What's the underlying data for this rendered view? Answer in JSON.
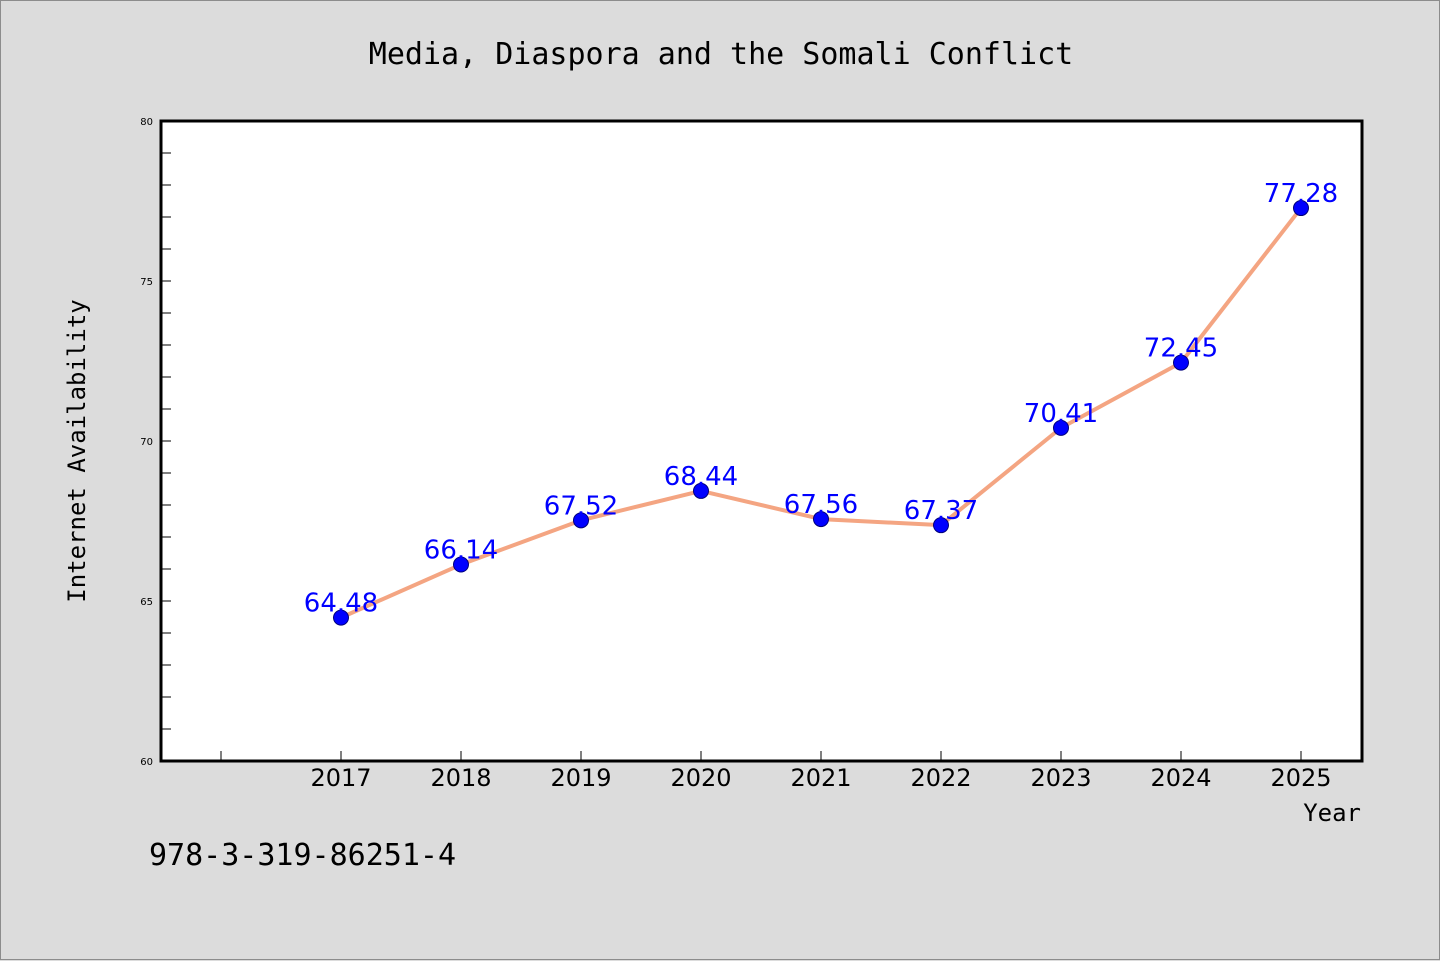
{
  "chart_data": {
    "type": "line",
    "title": "Media, Diaspora and the Somali Conflict",
    "xlabel": "Year",
    "ylabel": "Internet Availability",
    "categories": [
      "2017",
      "2018",
      "2019",
      "2020",
      "2021",
      "2022",
      "2023",
      "2024",
      "2025"
    ],
    "series": [
      {
        "values": [
          64.48,
          66.14,
          67.52,
          68.44,
          67.56,
          67.37,
          70.41,
          72.45,
          77.28
        ]
      }
    ],
    "data_labels": [
      "64.48",
      "66.14",
      "67.52",
      "68.44",
      "67.56",
      "67.37",
      "70.41",
      "72.45",
      "77.28"
    ],
    "ylim": [
      60,
      80
    ],
    "yticks": [
      "60",
      "65",
      "70",
      "75",
      "80"
    ],
    "grid": false,
    "colors": {
      "line": "#f4a582",
      "marker": "#0000ff",
      "data_label": "#0000ff",
      "plot_background": "#ffffff",
      "figure_background": "#dcdcdc"
    }
  },
  "footer": {
    "isbn": "978-3-319-86251-4"
  }
}
